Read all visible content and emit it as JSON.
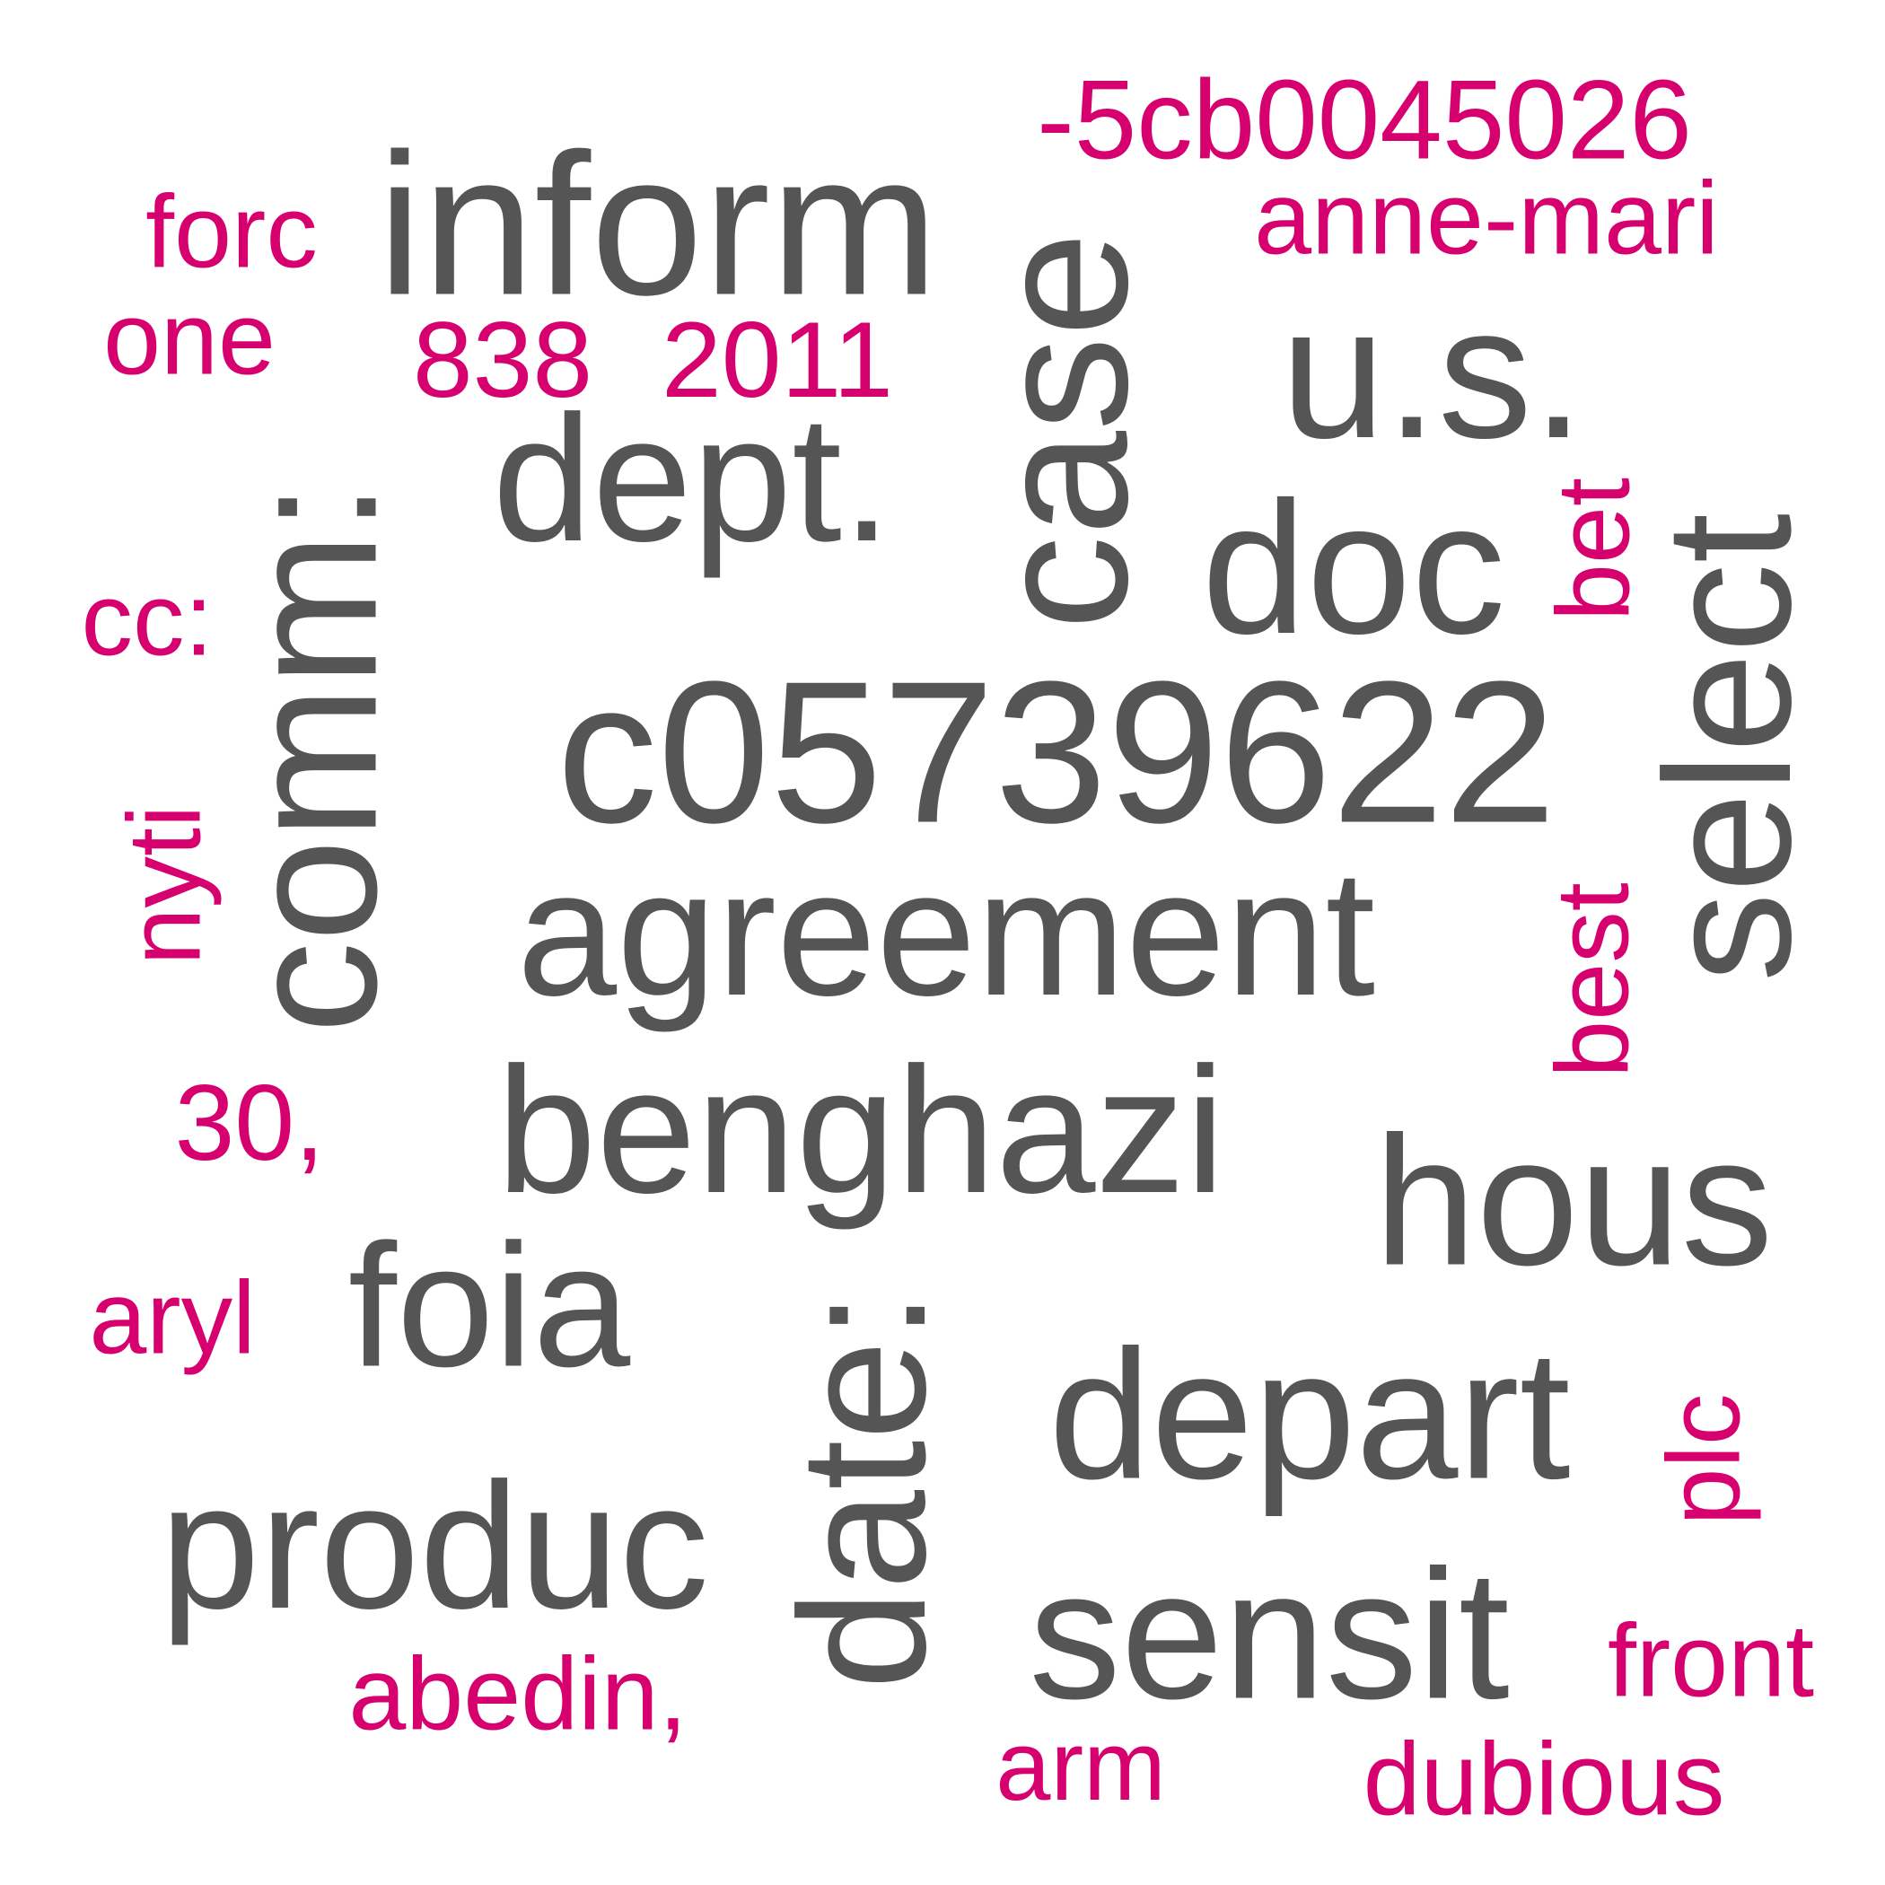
{
  "colors": {
    "primary": "#555555",
    "accent": "#d6006e",
    "background": "#ffffff"
  },
  "words": {
    "inform": "inform",
    "dept": "dept.",
    "case": "case",
    "us": "u.s.",
    "doc": "doc",
    "comm": "comm:",
    "c0573": "c05739622",
    "agreement": "agreement",
    "select": "select",
    "benghazi": "benghazi",
    "hous": "hous",
    "foia": "foia",
    "date": "date:",
    "depart": "depart",
    "produc": "produc",
    "sensit": "sensit",
    "hexid": "-5cb0045026",
    "annemari": "anne-mari",
    "forc": "forc",
    "one": "one",
    "n838": "838",
    "y2011": "2011",
    "cc": "cc:",
    "bet": "bet",
    "nyti": "nyti",
    "best": "best",
    "n30": "30,",
    "aryl": "aryl",
    "plc": "plc",
    "abedin": "abedin,",
    "front": "front",
    "arm": "arm",
    "dubious": "dubious"
  }
}
